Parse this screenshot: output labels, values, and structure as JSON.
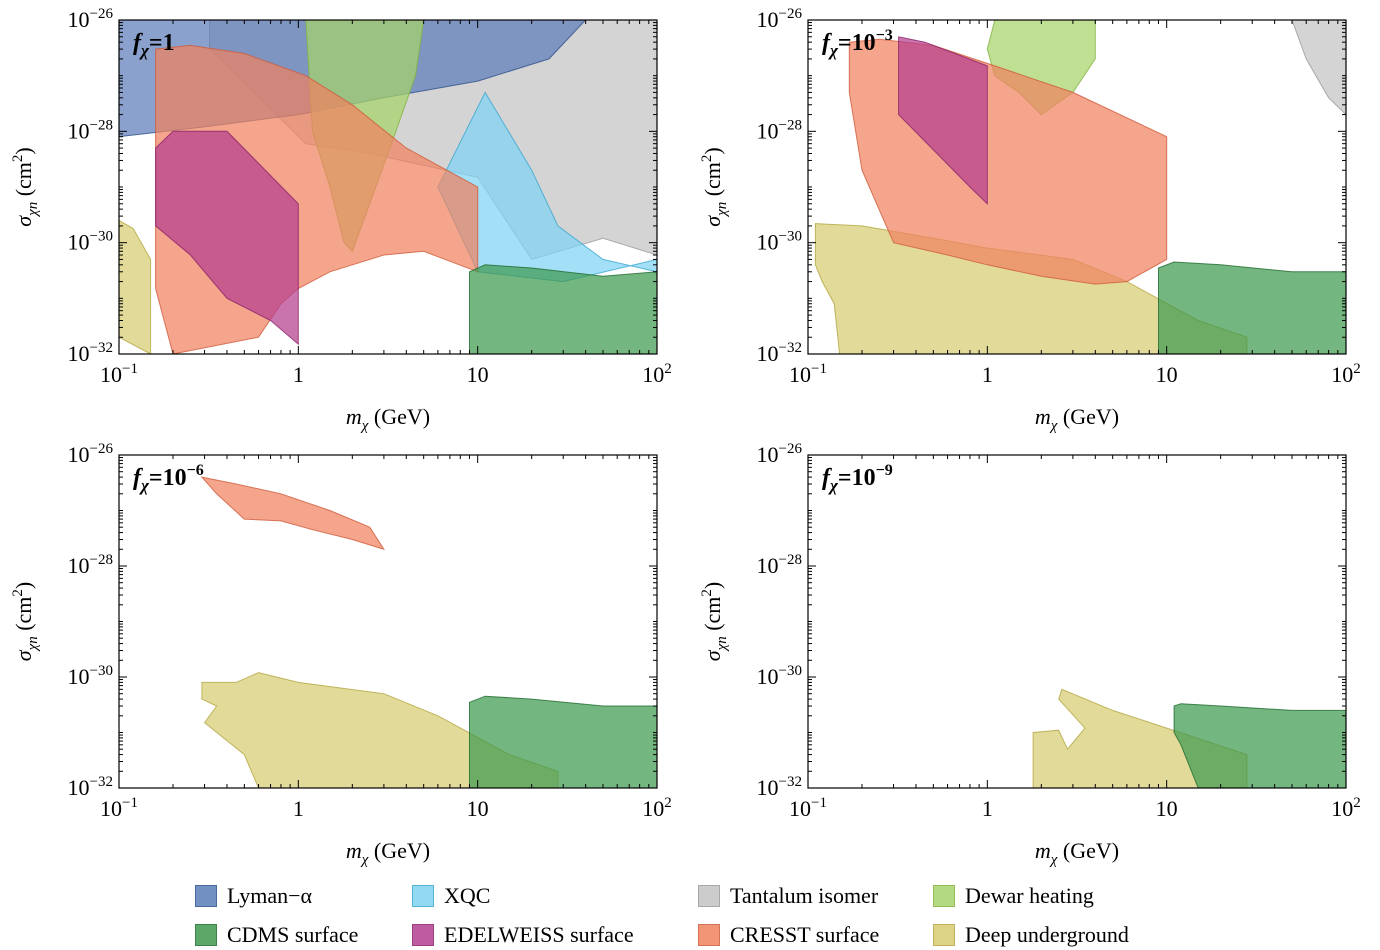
{
  "colors": {
    "Lyman-α": "#5b7db8",
    "XQC": "#7fd3f2",
    "Tantalum isomer": "#c4c4c4",
    "Dewar heating": "#a6d46a",
    "CDMS surface": "#3f9a4f",
    "EDELWEISS surface": "#b53f8f",
    "CRESST surface": "#f0825f",
    "Deep underground": "#d7cc72"
  },
  "chart_data": [
    {
      "type": "area",
      "panel_label_base": "f",
      "panel_label_sub": "χ",
      "panel_label_value": "=1",
      "xlabel": "m_χ (GeV)",
      "ylabel": "σ_χn (cm²)",
      "xscale": "log",
      "yscale": "log",
      "xlim": [
        0.1,
        100
      ],
      "ylim": [
        1e-32,
        1e-26
      ],
      "xticks": [
        "10^-1",
        "1",
        "10",
        "10^2"
      ],
      "yticks": [
        "10^-32",
        "10^-30",
        "10^-28",
        "10^-26"
      ],
      "regions": [
        {
          "name": "Tantalum isomer",
          "points": [
            [
              0.32,
              1e-26
            ],
            [
              100,
              1e-26
            ],
            [
              100,
              6e-31
            ],
            [
              50,
              1.2e-30
            ],
            [
              20,
              5e-31
            ],
            [
              10,
              1.5e-29
            ],
            [
              2.5,
              4e-29
            ],
            [
              1.1,
              6e-29
            ],
            [
              0.32,
              3e-27
            ]
          ]
        },
        {
          "name": "Lyman-α",
          "points": [
            [
              0.1,
              1e-26
            ],
            [
              40,
              1e-26
            ],
            [
              25,
              2e-27
            ],
            [
              10,
              8e-28
            ],
            [
              3,
              4e-28
            ],
            [
              1,
              2e-28
            ],
            [
              0.3,
              1.2e-28
            ],
            [
              0.1,
              8e-29
            ]
          ]
        },
        {
          "name": "XQC",
          "points": [
            [
              11,
              5e-28
            ],
            [
              20,
              2e-29
            ],
            [
              28,
              2e-30
            ],
            [
              50,
              5e-31
            ],
            [
              100,
              3e-31
            ],
            [
              100,
              5e-31
            ],
            [
              30,
              2e-31
            ],
            [
              10,
              3e-31
            ],
            [
              6,
              1e-29
            ]
          ]
        },
        {
          "name": "Dewar heating",
          "points": [
            [
              1.1,
              1e-26
            ],
            [
              5,
              1e-26
            ],
            [
              4.5,
              1e-27
            ],
            [
              3.5,
              1e-28
            ],
            [
              2.5,
              5e-30
            ],
            [
              2,
              7e-31
            ],
            [
              1.8,
              1e-30
            ],
            [
              1.5,
              1e-29
            ],
            [
              1.2,
              1e-28
            ]
          ]
        },
        {
          "name": "CRESST surface",
          "points": [
            [
              0.16,
              1.5e-31
            ],
            [
              0.16,
              3e-27
            ],
            [
              0.25,
              3.5e-27
            ],
            [
              0.5,
              2.5e-27
            ],
            [
              1.1,
              1e-27
            ],
            [
              2,
              3e-28
            ],
            [
              4,
              5e-29
            ],
            [
              10,
              1e-29
            ],
            [
              10,
              3e-31
            ],
            [
              5,
              7e-31
            ],
            [
              3,
              6e-31
            ],
            [
              1.5,
              3e-31
            ],
            [
              1,
              1.5e-31
            ],
            [
              0.8,
              8e-32
            ],
            [
              0.6,
              2e-32
            ],
            [
              0.2,
              1e-32
            ]
          ]
        },
        {
          "name": "EDELWEISS surface",
          "points": [
            [
              0.16,
              5e-29
            ],
            [
              0.2,
              1e-28
            ],
            [
              0.4,
              1e-28
            ],
            [
              1,
              5e-30
            ],
            [
              1,
              1.5e-32
            ],
            [
              0.7,
              4e-32
            ],
            [
              0.4,
              1e-31
            ],
            [
              0.25,
              6e-31
            ],
            [
              0.16,
              2e-30
            ]
          ]
        },
        {
          "name": "Deep underground",
          "points": [
            [
              0.1,
              2e-32
            ],
            [
              0.1,
              2.5e-30
            ],
            [
              0.12,
              1.8e-30
            ],
            [
              0.15,
              5e-31
            ],
            [
              0.15,
              1e-32
            ]
          ]
        },
        {
          "name": "CDMS surface",
          "points": [
            [
              9,
              3e-31
            ],
            [
              11,
              4e-31
            ],
            [
              20,
              3.5e-31
            ],
            [
              50,
              2.5e-31
            ],
            [
              100,
              3e-31
            ],
            [
              100,
              1e-32
            ],
            [
              9,
              1e-32
            ]
          ]
        }
      ]
    },
    {
      "type": "area",
      "panel_label_base": "f",
      "panel_label_sub": "χ",
      "panel_label_value": "=10",
      "panel_label_exp": "−3",
      "xlabel": "m_χ (GeV)",
      "ylabel": "σ_χn (cm²)",
      "xscale": "log",
      "yscale": "log",
      "xlim": [
        0.1,
        100
      ],
      "ylim": [
        1e-32,
        1e-26
      ],
      "xticks": [
        "10^-1",
        "1",
        "10",
        "10^2"
      ],
      "yticks": [
        "10^-32",
        "10^-30",
        "10^-28",
        "10^-26"
      ],
      "regions": [
        {
          "name": "Tantalum isomer",
          "points": [
            [
              50,
              1e-26
            ],
            [
              100,
              1e-26
            ],
            [
              100,
              2e-28
            ],
            [
              80,
              4e-28
            ],
            [
              60,
              2e-27
            ]
          ]
        },
        {
          "name": "Dewar heating",
          "points": [
            [
              1.1,
              1e-26
            ],
            [
              4,
              1e-26
            ],
            [
              4,
              2e-27
            ],
            [
              3,
              5e-28
            ],
            [
              2,
              2e-28
            ],
            [
              1.5,
              5e-28
            ],
            [
              1.1,
              1e-27
            ],
            [
              1,
              3e-27
            ]
          ]
        },
        {
          "name": "Deep underground",
          "points": [
            [
              0.11,
              2.2e-30
            ],
            [
              0.2,
              2e-30
            ],
            [
              0.5,
              1.2e-30
            ],
            [
              1,
              8e-31
            ],
            [
              3,
              5e-31
            ],
            [
              6,
              2e-31
            ],
            [
              15,
              4e-32
            ],
            [
              28,
              2e-32
            ],
            [
              28,
              1e-32
            ],
            [
              0.15,
              1e-32
            ],
            [
              0.14,
              8e-32
            ],
            [
              0.12,
              2e-31
            ],
            [
              0.11,
              4e-31
            ]
          ]
        },
        {
          "name": "CRESST surface",
          "points": [
            [
              0.17,
              5e-28
            ],
            [
              0.17,
              4e-27
            ],
            [
              0.25,
              4.5e-27
            ],
            [
              0.5,
              3.5e-27
            ],
            [
              1.1,
              1.5e-27
            ],
            [
              3,
              5e-28
            ],
            [
              10,
              8e-29
            ],
            [
              10,
              5e-31
            ],
            [
              6,
              2e-31
            ],
            [
              4,
              1.8e-31
            ],
            [
              2,
              2.5e-31
            ],
            [
              1,
              4e-31
            ],
            [
              0.6,
              6e-31
            ],
            [
              0.3,
              1e-30
            ],
            [
              0.2,
              2e-29
            ]
          ]
        },
        {
          "name": "EDELWEISS surface",
          "points": [
            [
              0.32,
              2e-28
            ],
            [
              0.32,
              5e-27
            ],
            [
              0.45,
              4e-27
            ],
            [
              1,
              1.5e-27
            ],
            [
              1,
              5e-30
            ],
            [
              0.8,
              1e-29
            ]
          ]
        },
        {
          "name": "CDMS surface",
          "points": [
            [
              9,
              3.5e-31
            ],
            [
              11,
              4.5e-31
            ],
            [
              20,
              4e-31
            ],
            [
              50,
              3e-31
            ],
            [
              100,
              3e-31
            ],
            [
              100,
              1e-32
            ],
            [
              9,
              1e-32
            ]
          ]
        }
      ]
    },
    {
      "type": "area",
      "panel_label_base": "f",
      "panel_label_sub": "χ",
      "panel_label_value": "=10",
      "panel_label_exp": "−6",
      "xlabel": "m_χ (GeV)",
      "ylabel": "σ_χn (cm²)",
      "xscale": "log",
      "yscale": "log",
      "xlim": [
        0.1,
        100
      ],
      "ylim": [
        1e-32,
        1e-26
      ],
      "xticks": [
        "10^-1",
        "1",
        "10",
        "10^2"
      ],
      "yticks": [
        "10^-32",
        "10^-30",
        "10^-28",
        "10^-26"
      ],
      "regions": [
        {
          "name": "CRESST surface",
          "points": [
            [
              0.29,
              4e-27
            ],
            [
              0.45,
              3e-27
            ],
            [
              0.8,
              2e-27
            ],
            [
              1.5,
              1e-27
            ],
            [
              2.5,
              5e-28
            ],
            [
              3,
              2e-28
            ],
            [
              2,
              3e-28
            ],
            [
              1.2,
              4.5e-28
            ],
            [
              0.8,
              6.5e-28
            ],
            [
              0.5,
              7e-28
            ],
            [
              0.35,
              2e-27
            ]
          ]
        },
        {
          "name": "Deep underground",
          "points": [
            [
              0.29,
              8e-31
            ],
            [
              0.45,
              8e-31
            ],
            [
              0.6,
              1.2e-30
            ],
            [
              1,
              8e-31
            ],
            [
              3,
              5e-31
            ],
            [
              6,
              2e-31
            ],
            [
              15,
              4e-32
            ],
            [
              28,
              2e-32
            ],
            [
              28,
              1e-32
            ],
            [
              0.6,
              1e-32
            ],
            [
              0.5,
              4e-32
            ],
            [
              0.3,
              1.5e-31
            ],
            [
              0.35,
              3e-31
            ],
            [
              0.29,
              4e-31
            ]
          ]
        },
        {
          "name": "CDMS surface",
          "points": [
            [
              9,
              3.5e-31
            ],
            [
              11,
              4.5e-31
            ],
            [
              20,
              4e-31
            ],
            [
              50,
              3e-31
            ],
            [
              100,
              3e-31
            ],
            [
              100,
              1e-32
            ],
            [
              9,
              1e-32
            ]
          ]
        }
      ]
    },
    {
      "type": "area",
      "panel_label_base": "f",
      "panel_label_sub": "χ",
      "panel_label_value": "=10",
      "panel_label_exp": "−9",
      "xlabel": "m_χ (GeV)",
      "ylabel": "σ_χn (cm²)",
      "xscale": "log",
      "yscale": "log",
      "xlim": [
        0.1,
        100
      ],
      "ylim": [
        1e-32,
        1e-26
      ],
      "xticks": [
        "10^-1",
        "1",
        "10",
        "10^2"
      ],
      "yticks": [
        "10^-32",
        "10^-30",
        "10^-28",
        "10^-26"
      ],
      "regions": [
        {
          "name": "Deep underground",
          "points": [
            [
              1.8,
              1e-32
            ],
            [
              1.8,
              1e-31
            ],
            [
              2.5,
              1.1e-31
            ],
            [
              2.8,
              5e-32
            ],
            [
              3.5,
              1.2e-31
            ],
            [
              2.5,
              4e-31
            ],
            [
              2.6,
              6e-31
            ],
            [
              5,
              2.5e-31
            ],
            [
              10,
              1.2e-31
            ],
            [
              28,
              4e-32
            ],
            [
              28,
              1e-32
            ]
          ]
        },
        {
          "name": "CDMS surface",
          "points": [
            [
              11,
              3e-31
            ],
            [
              12,
              3.3e-31
            ],
            [
              20,
              3e-31
            ],
            [
              50,
              2.5e-31
            ],
            [
              100,
              2.5e-31
            ],
            [
              100,
              1e-32
            ],
            [
              15,
              1e-32
            ],
            [
              12,
              6e-32
            ],
            [
              11,
              1e-31
            ]
          ]
        }
      ]
    }
  ],
  "legend": {
    "items": [
      {
        "label": "Lyman−α"
      },
      {
        "label": "XQC"
      },
      {
        "label": "Tantalum isomer"
      },
      {
        "label": "Dewar heating"
      },
      {
        "label": "CDMS surface"
      },
      {
        "label": "EDELWEISS surface"
      },
      {
        "label": "CRESST surface"
      },
      {
        "label": "Deep underground"
      }
    ]
  }
}
